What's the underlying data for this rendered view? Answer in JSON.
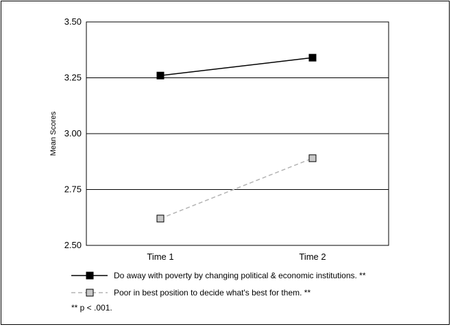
{
  "chart_data": {
    "type": "line",
    "title": "",
    "xlabel": "",
    "ylabel": "Mean Scores",
    "categories": [
      "Time 1",
      "Time 2"
    ],
    "ylim": [
      2.5,
      3.5
    ],
    "yticks": [
      "2.50",
      "2.75",
      "3.00",
      "3.25",
      "3.50"
    ],
    "grid": "horizontal",
    "legend_position": "bottom-left",
    "series": [
      {
        "name": "Do away with poverty by changing political & economic institutions. **",
        "values": [
          3.26,
          3.34
        ],
        "line_color": "#000000",
        "marker_fill": "#000000",
        "line_style": "solid"
      },
      {
        "name": "Poor in best position to decide what's best for them. **",
        "values": [
          2.62,
          2.89
        ],
        "line_color": "#b3b3b3",
        "marker_fill": "#c8c8c8",
        "line_style": "dashed"
      }
    ],
    "footnote": "** p < .001."
  }
}
